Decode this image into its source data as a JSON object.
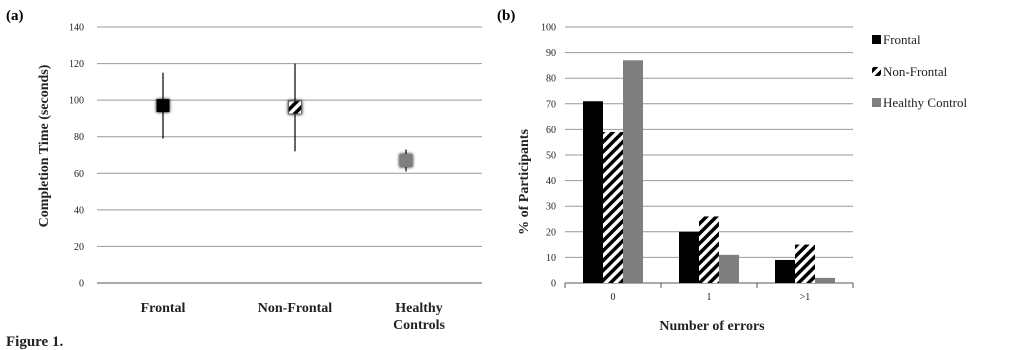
{
  "figure_caption": "Figure 1.",
  "colors": {
    "frontal": "#000000",
    "non_frontal": "#ffffff",
    "healthy": "#7f7f7f",
    "gridline": "#999999",
    "axis": "#555555"
  },
  "chart_data": [
    {
      "panel_label": "(a)",
      "type": "scatter",
      "ylabel": "Completion Time (seconds)",
      "ylim": [
        0,
        140
      ],
      "yticks": [
        "0",
        "20",
        "40",
        "60",
        "80",
        "100",
        "120",
        "140"
      ],
      "grid": true,
      "categories": [
        "Frontal",
        "Non-Frontal",
        "Healthy Controls"
      ],
      "points": [
        {
          "category": "Frontal",
          "value": 97,
          "low": 79,
          "high": 115,
          "marker": "frontal"
        },
        {
          "category": "Non-Frontal",
          "value": 96,
          "low": 72,
          "high": 120,
          "marker": "non_frontal"
        },
        {
          "category": "Healthy Controls",
          "value": 67,
          "low": 61,
          "high": 73,
          "marker": "healthy"
        }
      ]
    },
    {
      "panel_label": "(b)",
      "type": "bar",
      "ylabel": "% of Participants",
      "xlabel": "Number of errors",
      "ylim": [
        0,
        100
      ],
      "yticks": [
        "0",
        "10",
        "20",
        "30",
        "40",
        "50",
        "60",
        "70",
        "80",
        "90",
        "100"
      ],
      "grid": true,
      "legend_position": "right",
      "categories": [
        "0",
        "1",
        ">1"
      ],
      "series": [
        {
          "name": "Frontal",
          "key": "frontal",
          "values": [
            71,
            20,
            9
          ]
        },
        {
          "name": "Non-Frontal",
          "key": "non_frontal",
          "values": [
            59,
            26,
            15
          ]
        },
        {
          "name": "Healthy Control",
          "key": "healthy",
          "values": [
            87,
            11,
            2
          ]
        }
      ]
    }
  ]
}
